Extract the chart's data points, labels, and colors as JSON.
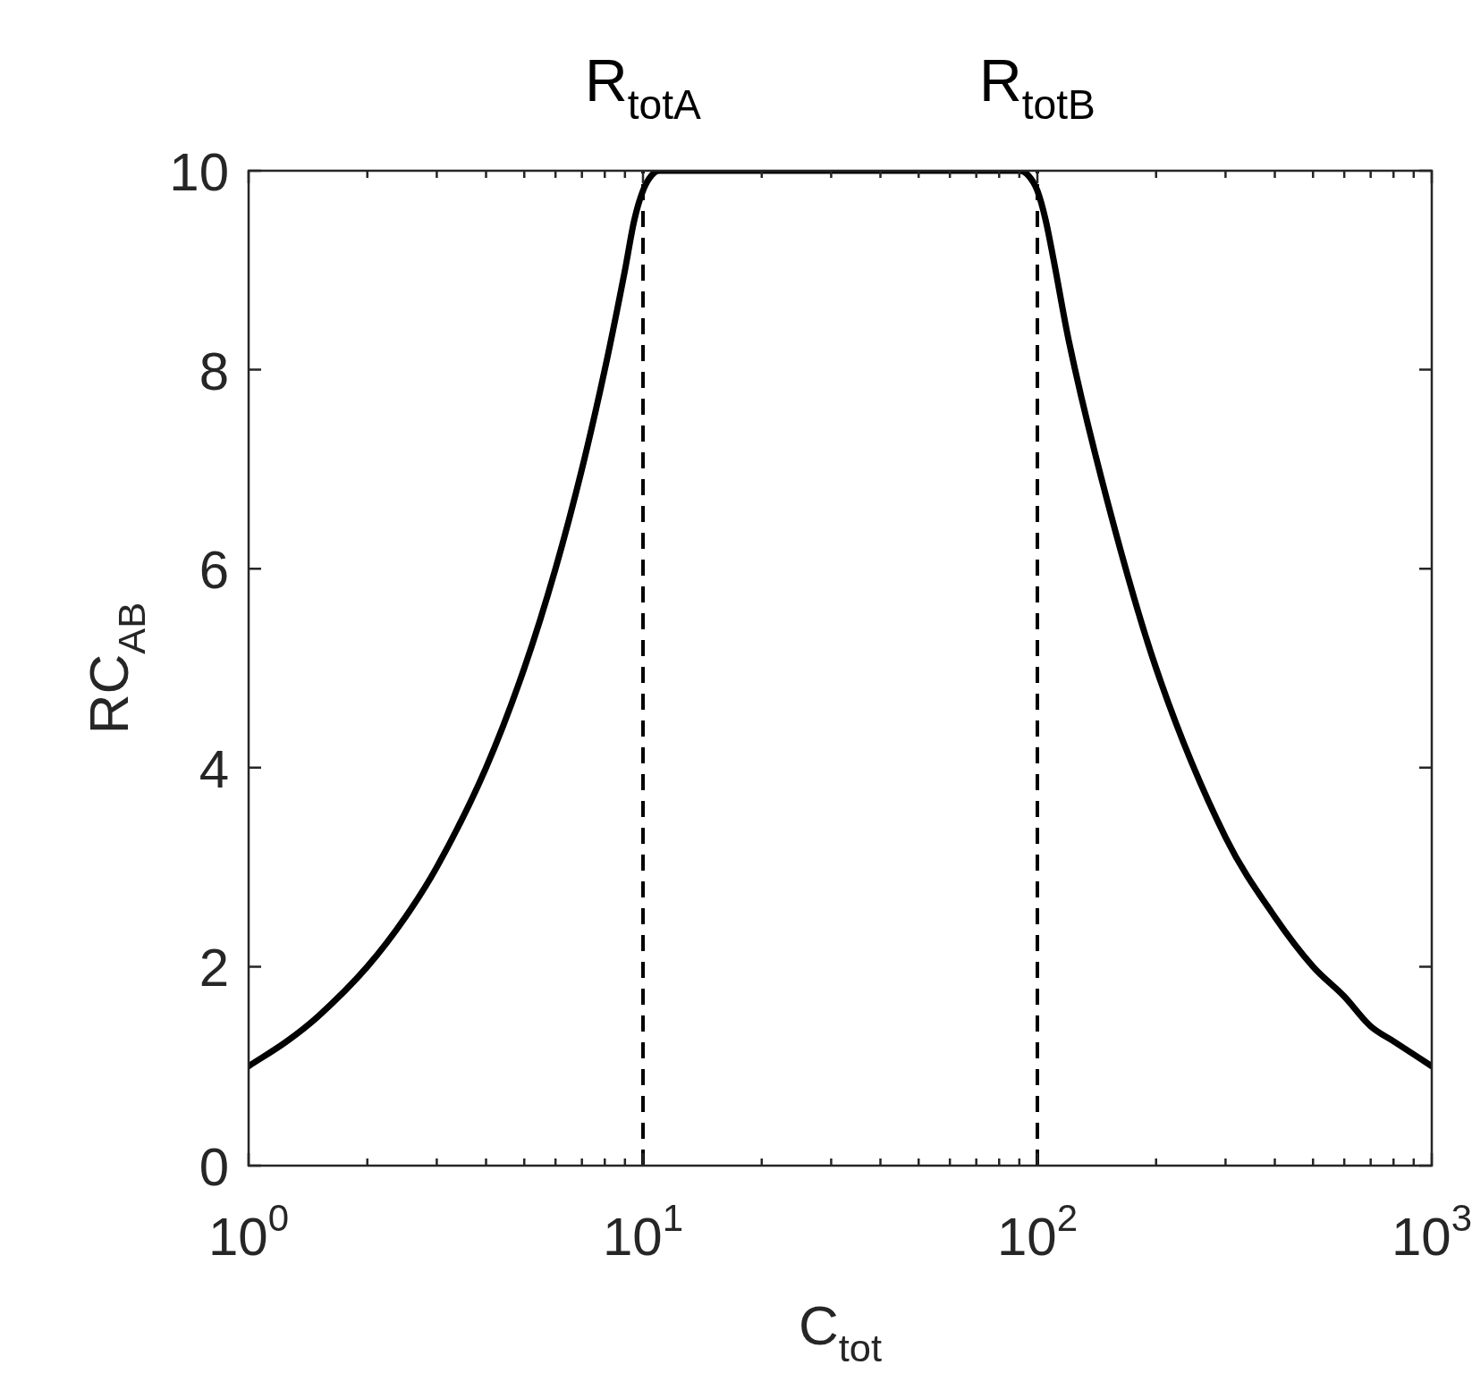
{
  "chart_data": {
    "type": "line",
    "xlabel": "C$_{tot}$",
    "ylabel": "RC$_{AB}$",
    "log": "x",
    "grid": false,
    "legend": false,
    "marker": "none",
    "line_style": "solid",
    "xlim": [
      1,
      1000
    ],
    "ylim": [
      0,
      10
    ],
    "xticks": [
      {
        "value": 1,
        "label": "10$^{0}$"
      },
      {
        "value": 2,
        "label": null
      },
      {
        "value": 3,
        "label": null
      },
      {
        "value": 4,
        "label": null
      },
      {
        "value": 5,
        "label": null
      },
      {
        "value": 6,
        "label": null
      },
      {
        "value": 7,
        "label": null
      },
      {
        "value": 8,
        "label": null
      },
      {
        "value": 9,
        "label": null
      },
      {
        "value": 10,
        "label": "10$^{1}$"
      },
      {
        "value": 20,
        "label": null
      },
      {
        "value": 30,
        "label": null
      },
      {
        "value": 40,
        "label": null
      },
      {
        "value": 50,
        "label": null
      },
      {
        "value": 60,
        "label": null
      },
      {
        "value": 70,
        "label": null
      },
      {
        "value": 80,
        "label": null
      },
      {
        "value": 90,
        "label": null
      },
      {
        "value": 100,
        "label": "10$^{2}$"
      },
      {
        "value": 200,
        "label": null
      },
      {
        "value": 300,
        "label": null
      },
      {
        "value": 400,
        "label": null
      },
      {
        "value": 500,
        "label": null
      },
      {
        "value": 600,
        "label": null
      },
      {
        "value": 700,
        "label": null
      },
      {
        "value": 800,
        "label": null
      },
      {
        "value": 900,
        "label": null
      },
      {
        "value": 1000,
        "label": "10$^{3}$"
      }
    ],
    "yticks": [
      0,
      2,
      4,
      6,
      8,
      10
    ],
    "ref_lines": [
      {
        "axis": "x",
        "value": 10,
        "label": "R$_{totA}$",
        "color": "#000000",
        "line_style": "dashed"
      },
      {
        "axis": "x",
        "value": 100,
        "label": "R$_{totB}$",
        "color": "#000000",
        "line_style": "dashed"
      }
    ],
    "series": [
      {
        "color": "#000000",
        "x": [
          1,
          1.25,
          1.5,
          2,
          2.5,
          3,
          4,
          5,
          6,
          7,
          8,
          9,
          9.5,
          10,
          10.5,
          11,
          12,
          15,
          20,
          30,
          50,
          70,
          85,
          90,
          95,
          100,
          105,
          110,
          120,
          150,
          200,
          300,
          400,
          500,
          600,
          700,
          800,
          1000
        ],
        "values": [
          1,
          1.25,
          1.5,
          2,
          2.5,
          3,
          4,
          5,
          6,
          7,
          8,
          9,
          9.5,
          9.8,
          9.95,
          10,
          10,
          10,
          10,
          10,
          10,
          10,
          10,
          10,
          9.95,
          9.8,
          9.5,
          9.1,
          8.3,
          6.7,
          5,
          3.3,
          2.5,
          2,
          1.7,
          1.4,
          1.25,
          1
        ]
      }
    ]
  }
}
